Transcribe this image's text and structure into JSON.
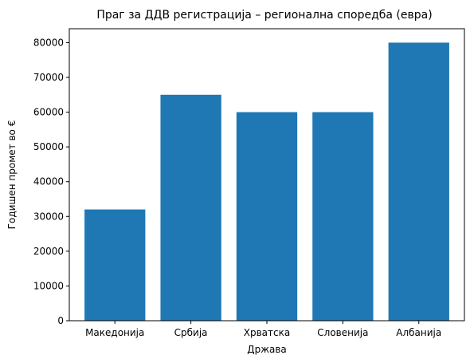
{
  "chart_data": {
    "type": "bar",
    "title": "Праг за ДДВ регистрација – регионална споредба (евра)",
    "xlabel": "Држава",
    "ylabel": "Годишен промет во €",
    "categories": [
      "Македонија",
      "Србија",
      "Хрватска",
      "Словенија",
      "Албанија"
    ],
    "values": [
      32000,
      65000,
      60000,
      60000,
      80000
    ],
    "ylim": [
      0,
      84000
    ],
    "yticks": [
      0,
      10000,
      20000,
      30000,
      40000,
      50000,
      60000,
      70000,
      80000
    ],
    "bar_color": "#1f77b4",
    "grid": false,
    "legend": "none"
  }
}
